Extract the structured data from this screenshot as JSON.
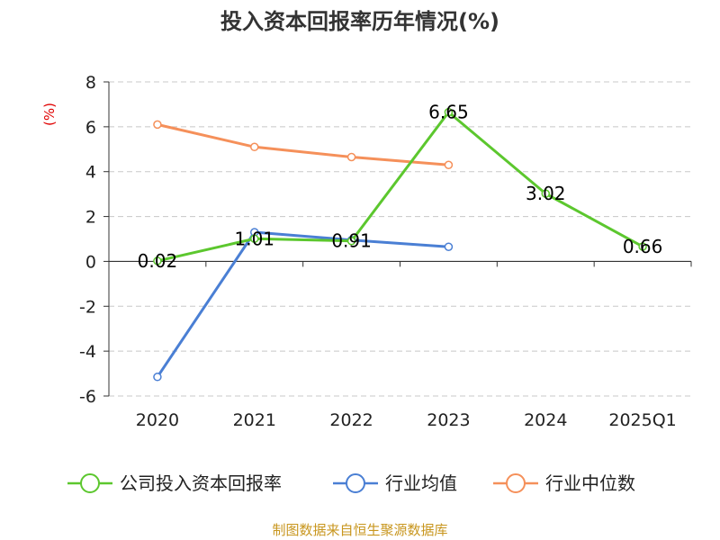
{
  "chart_data": {
    "type": "line",
    "title": "投入资本回报率历年情况(%)",
    "unit_label": "(%)",
    "categories": [
      "2020",
      "2021",
      "2022",
      "2023",
      "2024",
      "2025Q1"
    ],
    "ylim": [
      -6,
      8
    ],
    "yticks": [
      8,
      6,
      4,
      2,
      0,
      -2,
      -4,
      -6
    ],
    "grid": true,
    "legend_position": "bottom",
    "series": [
      {
        "name": "公司投入资本回报率",
        "color": "#5cc72e",
        "values": [
          0.02,
          1.01,
          0.91,
          6.65,
          3.02,
          0.66
        ],
        "labels": [
          "0.02",
          "1.01",
          "0.91",
          "6.65",
          "3.02",
          "0.66"
        ]
      },
      {
        "name": "行业均值",
        "color": "#4a7fd4",
        "values": [
          -5.15,
          1.3,
          0.95,
          0.65,
          null,
          null
        ]
      },
      {
        "name": "行业中位数",
        "color": "#f5905a",
        "values": [
          6.1,
          5.1,
          4.65,
          4.3,
          null,
          null
        ]
      }
    ]
  },
  "source": "制图数据来自恒生聚源数据库"
}
